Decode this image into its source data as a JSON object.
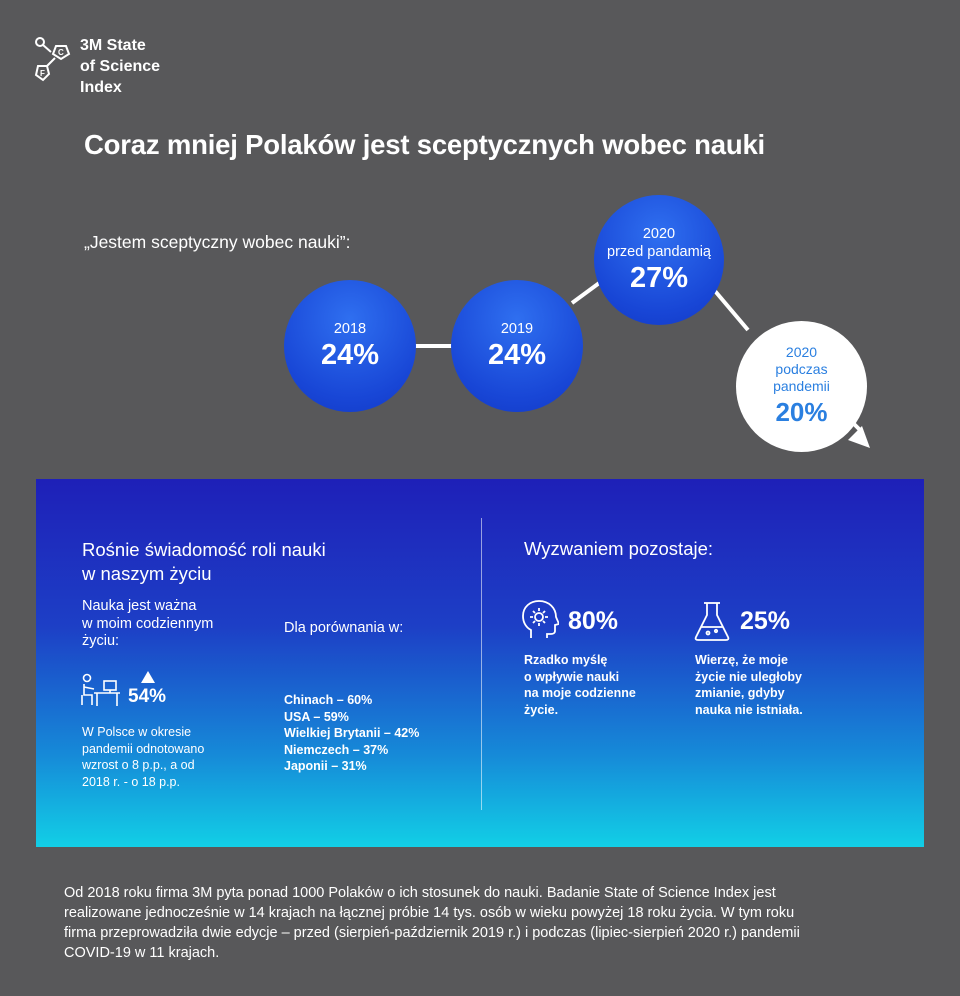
{
  "logo": {
    "line1": "3M State",
    "line2": "of Science",
    "line3": "Index",
    "icon": "molecule-icon"
  },
  "title": "Coraz mniej Polaków jest sceptycznych wobec nauki",
  "quote": "„Jestem sceptyczny wobec nauki”:",
  "timeline": [
    {
      "year": "2018",
      "value": "24%"
    },
    {
      "year": "2019",
      "value": "24%"
    },
    {
      "year_line1": "2020",
      "year_line2": "przed pandamią",
      "value": "27%"
    },
    {
      "year_line1": "2020",
      "year_line2": "podczas",
      "year_line3": "pandemii",
      "value": "20%"
    }
  ],
  "left": {
    "heading_line1": "Rośnie świadomość roli nauki",
    "heading_line2": "w naszym życiu",
    "sub_line1": "Nauka jest ważna",
    "sub_line2": "w moim codziennym",
    "sub_line3": "życiu:",
    "stat": "54%",
    "desc_line1": "W Polsce w okresie",
    "desc_line2": "pandemii odnotowano",
    "desc_line3": "wzrost o 8 p.p., a od",
    "desc_line4": "2018 r.  - o 18 p.p.",
    "compare_label": "Dla porównania w:",
    "countries": [
      "Chinach – 60%",
      "USA – 59%",
      "Wielkiej Brytanii – 42%",
      "Niemczech – 37%",
      "Japonii – 31%"
    ]
  },
  "right": {
    "heading": "Wyzwaniem pozostaje:",
    "stat1": "80%",
    "text1_line1": "Rzadko myślę",
    "text1_line2": "o wpływie nauki",
    "text1_line3": "na moje codzienne",
    "text1_line4": "życie.",
    "stat2": "25%",
    "text2_line1": "Wierzę, że moje",
    "text2_line2": "życie nie uległoby",
    "text2_line3": "zmianie, gdyby",
    "text2_line4": "nauka nie istniała."
  },
  "footer": {
    "line1": "Od 2018 roku firma 3M pyta ponad 1000 Polaków o ich stosunek do nauki. Badanie State of Science Index jest",
    "line2": "realizowane jednocześnie w 14 krajach na łącznej próbie 14 tys. osób w wieku powyżej 18 roku życia. W tym roku",
    "line3": "firma przeprowadziła dwie edycje – przed (sierpień-październik 2019 r.) i podczas (lipiec-sierpień 2020 r.) pandemii",
    "line4": "COVID-19 w 11 krajach."
  },
  "colors": {
    "background": "#58585a",
    "bubble_blue": "#1846d6",
    "highlight_text": "#2a7fe0",
    "panel_top": "#1e20b8",
    "panel_bottom": "#12cfe6"
  }
}
